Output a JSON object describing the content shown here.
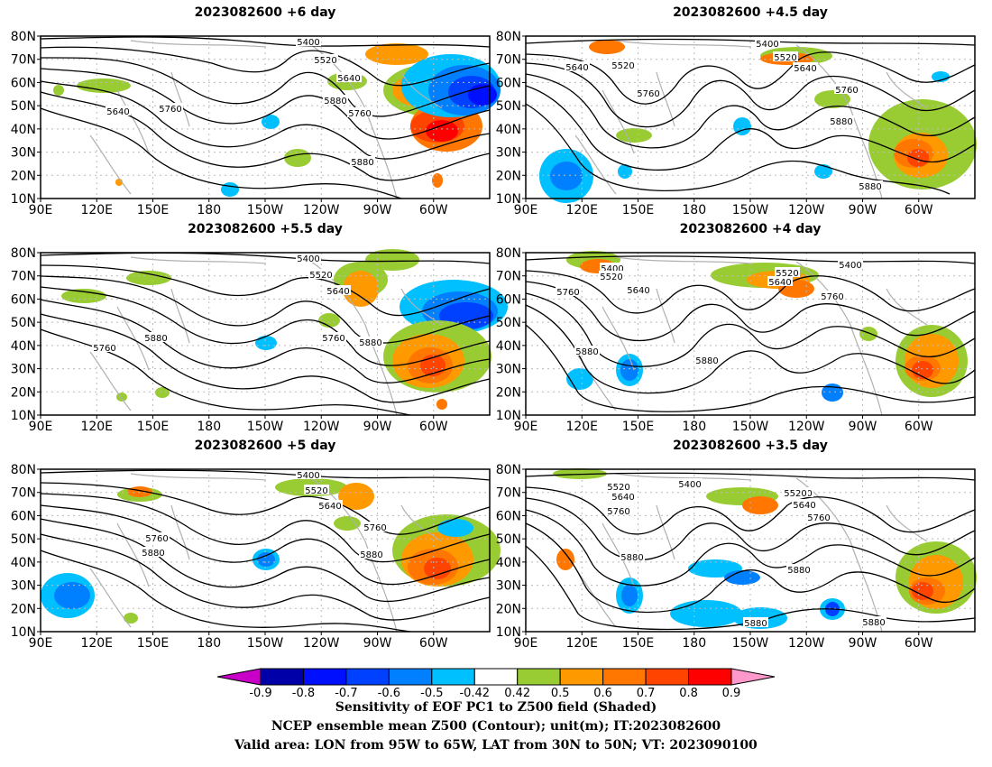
{
  "panels": [
    {
      "title": "2023082600  +6 day"
    },
    {
      "title": "2023082600  +4.5 day"
    },
    {
      "title": "2023082600  +5.5 day"
    },
    {
      "title": "2023082600  +4 day"
    },
    {
      "title": "2023082600  +5 day"
    },
    {
      "title": "2023082600  +3.5 day"
    }
  ],
  "axes": {
    "lat_labels": [
      "80N",
      "70N",
      "60N",
      "50N",
      "40N",
      "30N",
      "20N",
      "10N"
    ],
    "lon_labels": [
      "90E",
      "120E",
      "150E",
      "180",
      "150W",
      "120W",
      "90W",
      "60W"
    ]
  },
  "contour_labels": {
    "p0": [
      "5400",
      "5520",
      "5640",
      "5640",
      "5760",
      "5760",
      "5880",
      "5880"
    ],
    "p1": [
      "5400",
      "5520",
      "5640",
      "5520",
      "5640",
      "5760",
      "5760",
      "5880",
      "5880"
    ],
    "p2": [
      "5400",
      "5520",
      "5640",
      "5760",
      "5760",
      "5880",
      "5880"
    ],
    "p3": [
      "5400",
      "5520",
      "5400",
      "5520",
      "5640",
      "5640",
      "5760",
      "5760",
      "5880",
      "5880"
    ],
    "p4": [
      "5400",
      "5520",
      "5640",
      "5760",
      "5760",
      "5880",
      "5880"
    ],
    "p5": [
      "5400",
      "5520",
      "5640",
      "5760",
      "5400",
      "5520",
      "5640",
      "5760",
      "5880",
      "5880",
      "5880",
      "5880"
    ]
  },
  "colorbar": {
    "labels": [
      "-0.9",
      "-0.8",
      "-0.7",
      "-0.6",
      "-0.5",
      "-0.42",
      "0.42",
      "0.5",
      "0.6",
      "0.7",
      "0.8",
      "0.9"
    ],
    "colors": [
      "#0000a8",
      "#0010ff",
      "#0040ff",
      "#0080ff",
      "#00c0ff",
      "#ffffff",
      "#99cc33",
      "#ff9900",
      "#ff7700",
      "#ff4400",
      "#ff0000"
    ],
    "low_color": "#c800c8",
    "high_color": "#ff99cc"
  },
  "caption": {
    "line1": "Sensitivity of EOF PC1 to Z500 field (Shaded)",
    "line2": "NCEP ensemble mean Z500 (Contour); unit(m); IT:2023082600",
    "line3": "Valid area: LON from 95W to 65W, LAT from 30N to 50N; VT: 2023090100"
  }
}
